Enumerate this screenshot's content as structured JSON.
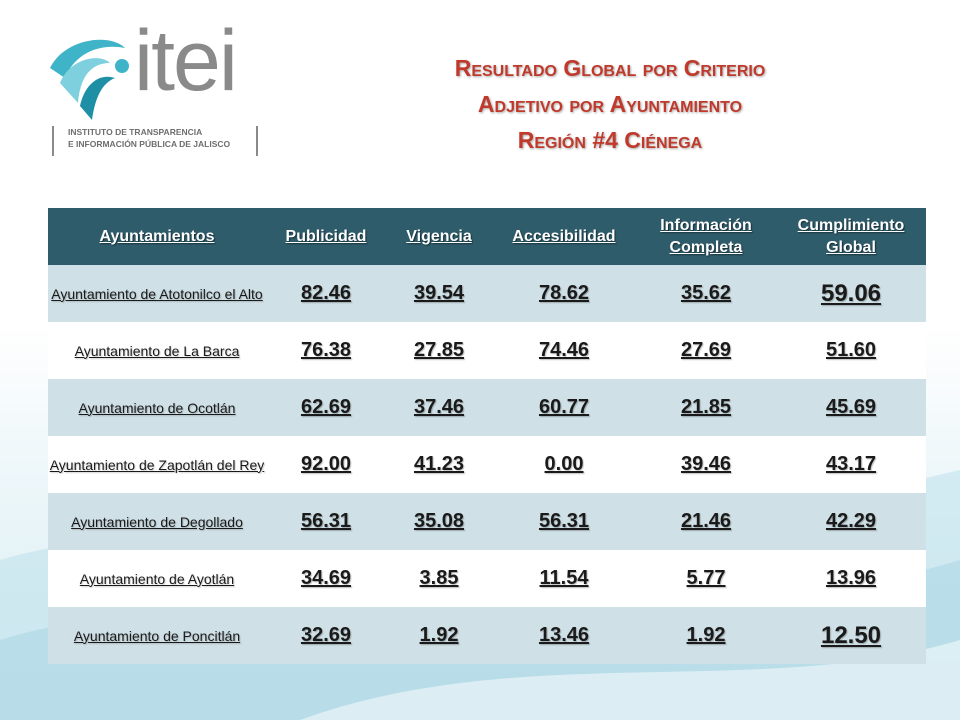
{
  "logo": {
    "word": "itei",
    "sub_line1": "INSTITUTO DE TRANSPARENCIA",
    "sub_line2": "E INFORMACIÓN PÚBLICA DE JALISCO"
  },
  "title": {
    "line1": "Resultado Global por Criterio",
    "line2": "Adjetivo por Ayuntamiento",
    "line3": "Región #4  Ciénega"
  },
  "colors": {
    "title": "#c0392b",
    "header_bg": "#2e5c6b",
    "row_alt_bg": "#cfe0e6"
  },
  "table": {
    "headers": [
      "Ayuntamientos",
      "Publicidad",
      "Vigencia",
      "Accesibilidad",
      "Información Completa",
      "Cumplimiento Global"
    ],
    "rows": [
      {
        "name": "Ayuntamiento de Atotonilco el Alto",
        "publicidad": "82.46",
        "vigencia": "39.54",
        "accesibilidad": "78.62",
        "informacion": "35.62",
        "cumplimiento": "59.06"
      },
      {
        "name": "Ayuntamiento de La Barca",
        "publicidad": "76.38",
        "vigencia": "27.85",
        "accesibilidad": "74.46",
        "informacion": "27.69",
        "cumplimiento": "51.60"
      },
      {
        "name": "Ayuntamiento de Ocotlán",
        "publicidad": "62.69",
        "vigencia": "37.46",
        "accesibilidad": "60.77",
        "informacion": "21.85",
        "cumplimiento": "45.69"
      },
      {
        "name": "Ayuntamiento de Zapotlán del Rey",
        "publicidad": "92.00",
        "vigencia": "41.23",
        "accesibilidad": "0.00",
        "informacion": "39.46",
        "cumplimiento": "43.17"
      },
      {
        "name": "Ayuntamiento de Degollado",
        "publicidad": "56.31",
        "vigencia": "35.08",
        "accesibilidad": "56.31",
        "informacion": "21.46",
        "cumplimiento": "42.29"
      },
      {
        "name": "Ayuntamiento de Ayotlán",
        "publicidad": "34.69",
        "vigencia": "3.85",
        "accesibilidad": "11.54",
        "informacion": "5.77",
        "cumplimiento": "13.96"
      },
      {
        "name": "Ayuntamiento de Poncitlán",
        "publicidad": "32.69",
        "vigencia": "1.92",
        "accesibilidad": "13.46",
        "informacion": "1.92",
        "cumplimiento": "12.50"
      }
    ]
  }
}
